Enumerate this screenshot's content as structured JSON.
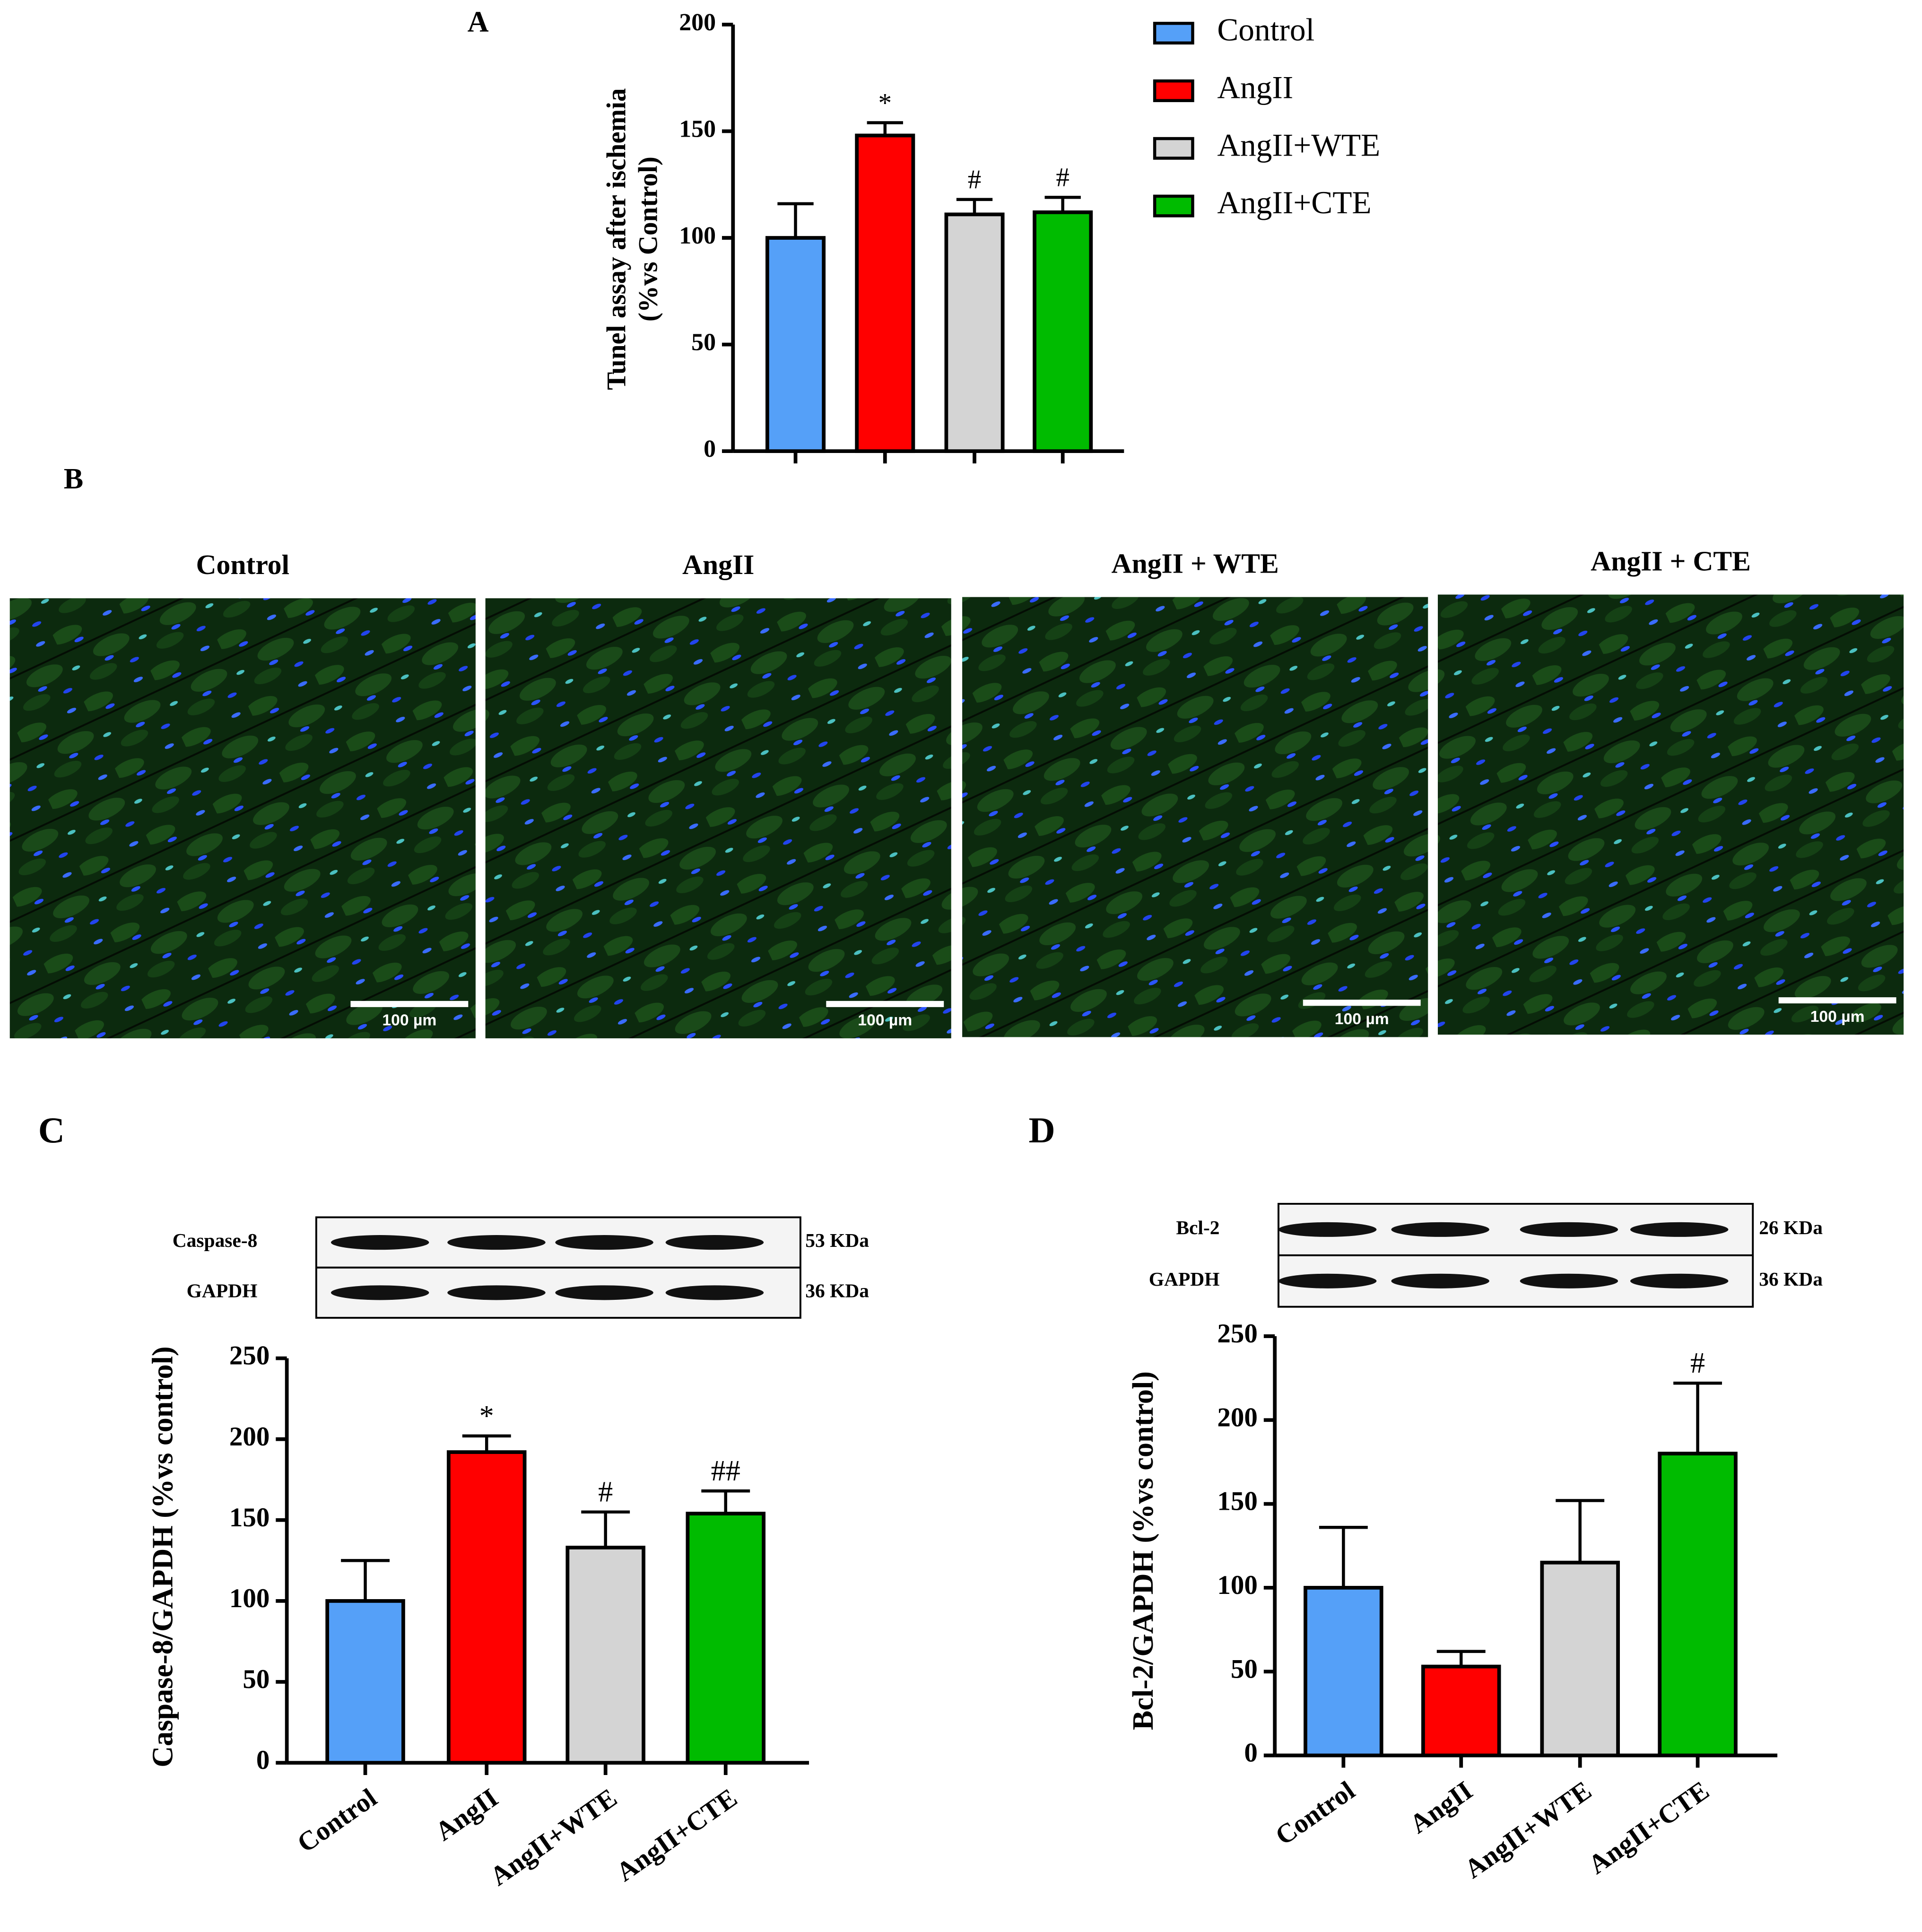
{
  "panel_labels": [
    "A",
    "B",
    "C",
    "D"
  ],
  "micrographs": [
    {
      "title": "Control",
      "scale_bar": "100 µm"
    },
    {
      "title": "AngII",
      "scale_bar": "100 µm"
    },
    {
      "title": "AngII + WTE",
      "scale_bar": "100 µm"
    },
    {
      "title": "AngII + CTE",
      "scale_bar": "100 µm"
    }
  ],
  "chart_data": [
    {
      "type": "bar",
      "ylabel": [
        "Tunel assay after ischemia",
        "(%vs Control)"
      ],
      "categories": [
        "Control",
        "AngII",
        "AngII+WTE",
        "AngII+CTE"
      ],
      "values": [
        100,
        148,
        111,
        112
      ],
      "errors": [
        16,
        6,
        7,
        7
      ],
      "annotations": [
        null,
        "*",
        "#",
        "#"
      ],
      "colors": [
        "#55a0f8",
        "#ff0000",
        "#d4d4d4",
        "#00bb00"
      ],
      "ylim": [
        0,
        200
      ],
      "yticks": [
        0,
        50,
        100,
        150,
        200
      ],
      "legend": "right"
    },
    {
      "type": "bar",
      "ylabel": [
        "Caspase-8/GAPDH (%vs control)"
      ],
      "categories": [
        "Control",
        "AngII",
        "AngII+WTE",
        "AngII+CTE"
      ],
      "values": [
        100,
        192,
        133,
        154
      ],
      "errors": [
        25,
        10,
        22,
        14
      ],
      "annotations": [
        null,
        "*",
        "#",
        "##"
      ],
      "colors": [
        "#55a0f8",
        "#ff0000",
        "#d4d4d4",
        "#00bb00"
      ],
      "ylim": [
        0,
        250
      ],
      "yticks": [
        0,
        50,
        100,
        150,
        200,
        250
      ],
      "xlabels": true,
      "blot": [
        {
          "label": "Caspase-8",
          "size": "53 KDa"
        },
        {
          "label": "GAPDH",
          "size": "36 KDa"
        }
      ]
    },
    {
      "type": "bar",
      "ylabel": [
        "Bcl-2/GAPDH (%vs control)"
      ],
      "categories": [
        "Control",
        "AngII",
        "AngII+WTE",
        "AngII+CTE"
      ],
      "values": [
        100,
        53,
        115,
        180
      ],
      "errors": [
        36,
        9,
        37,
        42
      ],
      "annotations": [
        null,
        null,
        null,
        "#"
      ],
      "colors": [
        "#55a0f8",
        "#ff0000",
        "#d4d4d4",
        "#00bb00"
      ],
      "ylim": [
        0,
        250
      ],
      "yticks": [
        0,
        50,
        100,
        150,
        200,
        250
      ],
      "xlabels": true,
      "blot": [
        {
          "label": "Bcl-2",
          "size": "26 KDa"
        },
        {
          "label": "GAPDH",
          "size": "36 KDa"
        }
      ]
    }
  ]
}
